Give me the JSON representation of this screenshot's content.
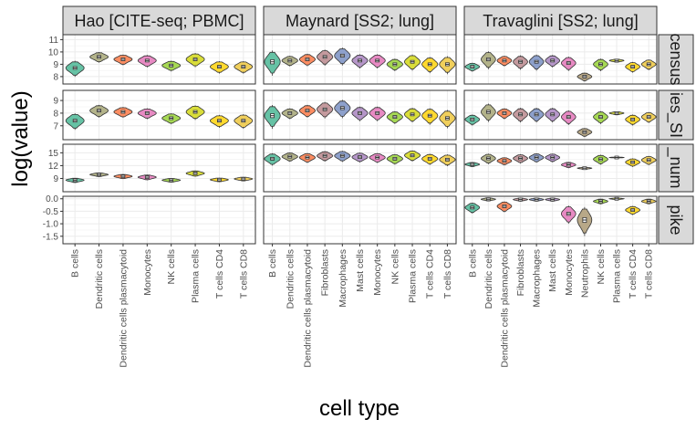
{
  "chart_data": {
    "type": "violin",
    "xlabel": "cell type",
    "ylabel": "log(value)",
    "grid": true,
    "legend": "none",
    "column_facets": [
      "Hao [CITE-seq; PBMC]",
      "Maynard [SS2; lung]",
      "Travaglini [SS2; lung]"
    ],
    "row_facets": [
      "census",
      "ies_SI",
      "number",
      "spike"
    ],
    "row_facets_visible": [
      "census",
      "ies_SI",
      "_num",
      "pike"
    ],
    "categories_by_column": [
      [
        "B cells",
        "Dendritic cells",
        "Dendritic cells plasmacytoid",
        "Monocytes",
        "NK cells",
        "Plasma cells",
        "T cells CD4",
        "T cells CD8"
      ],
      [
        "B cells",
        "Dendritic cells",
        "Dendritic cells plasmacytoid",
        "Fibroblasts",
        "Macrophages",
        "Mast cells",
        "Monocytes",
        "NK cells",
        "Plasma cells",
        "T cells CD4",
        "T cells CD8"
      ],
      [
        "B cells",
        "Dendritic cells",
        "Dendritic cells plasmacytoid",
        "Fibroblasts",
        "Macrophages",
        "Mast cells",
        "Monocytes",
        "Neutrophils",
        "NK cells",
        "Plasma cells",
        "T cells CD4",
        "T cells CD8"
      ]
    ],
    "colors": {
      "B cells": "#66c2a5",
      "Dendritic cells": "#b3b38a",
      "Dendritic cells plasmacytoid": "#fc8d62",
      "Fibroblasts": "#c49a9e",
      "Macrophages": "#8da0cb",
      "Mast cells": "#b596c8",
      "Monocytes": "#e78ac3",
      "Neutrophils": "#b8a888",
      "NK cells": "#a6d854",
      "Plasma cells": "#d9dd3a",
      "T cells CD4": "#ffd92f",
      "T cells CD8": "#f0cf5c"
    },
    "panels": [
      {
        "row": "census",
        "ylim": [
          7.4,
          11.4
        ],
        "yticks": [
          8,
          9,
          10,
          11
        ],
        "columns": [
          [
            [
              8.7,
              0.9
            ],
            [
              9.6,
              0.6
            ],
            [
              9.4,
              0.6
            ],
            [
              9.3,
              0.7
            ],
            [
              8.9,
              0.6
            ],
            [
              9.4,
              0.8
            ],
            [
              8.8,
              0.7
            ],
            [
              8.8,
              0.7
            ]
          ],
          [
            [
              9.2,
              1.4
            ],
            [
              9.3,
              0.6
            ],
            [
              9.4,
              0.7
            ],
            [
              9.6,
              0.9
            ],
            [
              9.7,
              1.0
            ],
            [
              9.3,
              0.8
            ],
            [
              9.3,
              0.8
            ],
            [
              9.0,
              0.7
            ],
            [
              9.2,
              0.9
            ],
            [
              9.0,
              0.9
            ],
            [
              9.0,
              1.0
            ]
          ],
          [
            [
              8.8,
              0.5
            ],
            [
              9.4,
              1.0
            ],
            [
              9.3,
              0.6
            ],
            [
              9.2,
              0.8
            ],
            [
              9.2,
              0.9
            ],
            [
              9.3,
              0.7
            ],
            [
              9.1,
              0.8
            ],
            [
              8.0,
              0.5
            ],
            [
              9.0,
              0.7
            ],
            [
              9.3,
              0.2
            ],
            [
              8.8,
              0.6
            ],
            [
              9.0,
              0.6
            ]
          ]
        ]
      },
      {
        "row": "ies_SI",
        "ylim": [
          5.9,
          9.8
        ],
        "yticks": [
          7,
          8,
          9
        ],
        "columns": [
          [
            [
              7.4,
              0.9
            ],
            [
              8.2,
              0.7
            ],
            [
              8.1,
              0.6
            ],
            [
              8.0,
              0.6
            ],
            [
              7.6,
              0.6
            ],
            [
              8.1,
              0.8
            ],
            [
              7.4,
              0.7
            ],
            [
              7.4,
              0.8
            ]
          ],
          [
            [
              7.8,
              1.3
            ],
            [
              8.0,
              0.6
            ],
            [
              8.2,
              0.7
            ],
            [
              8.3,
              0.9
            ],
            [
              8.4,
              1.0
            ],
            [
              8.0,
              0.8
            ],
            [
              8.0,
              0.8
            ],
            [
              7.7,
              0.7
            ],
            [
              7.9,
              0.8
            ],
            [
              7.8,
              0.9
            ],
            [
              7.6,
              1.0
            ]
          ],
          [
            [
              7.5,
              0.6
            ],
            [
              8.1,
              1.0
            ],
            [
              8.0,
              0.6
            ],
            [
              7.9,
              0.8
            ],
            [
              7.9,
              0.8
            ],
            [
              7.9,
              0.8
            ],
            [
              7.7,
              0.8
            ],
            [
              6.5,
              0.5
            ],
            [
              7.7,
              0.7
            ],
            [
              8.0,
              0.2
            ],
            [
              7.5,
              0.6
            ],
            [
              7.7,
              0.6
            ]
          ]
        ]
      },
      {
        "row": "number",
        "ylim": [
          5.9,
          17.0
        ],
        "yticks": [
          9,
          12,
          15
        ],
        "columns": [
          [
            [
              8.6,
              0.8
            ],
            [
              9.9,
              0.7
            ],
            [
              9.5,
              0.8
            ],
            [
              9.3,
              0.9
            ],
            [
              8.6,
              0.7
            ],
            [
              10.2,
              1.0
            ],
            [
              8.7,
              0.7
            ],
            [
              8.9,
              0.7
            ]
          ],
          [
            [
              13.6,
              2.0
            ],
            [
              14.1,
              1.5
            ],
            [
              13.9,
              1.6
            ],
            [
              14.3,
              1.7
            ],
            [
              14.3,
              1.8
            ],
            [
              14.0,
              1.6
            ],
            [
              13.9,
              1.6
            ],
            [
              13.6,
              1.7
            ],
            [
              14.4,
              1.8
            ],
            [
              13.6,
              1.8
            ],
            [
              13.4,
              1.9
            ]
          ],
          [
            [
              12.3,
              0.8
            ],
            [
              13.7,
              1.7
            ],
            [
              13.1,
              1.3
            ],
            [
              13.7,
              1.5
            ],
            [
              13.9,
              1.5
            ],
            [
              13.9,
              1.4
            ],
            [
              12.2,
              1.0
            ],
            [
              11.4,
              0.4
            ],
            [
              13.5,
              1.6
            ],
            [
              13.9,
              0.2
            ],
            [
              12.8,
              1.4
            ],
            [
              13.3,
              1.5
            ]
          ]
        ]
      },
      {
        "row": "spike",
        "ylim": [
          -1.8,
          0.1
        ],
        "yticks": [
          0.0,
          -0.5,
          -1.0,
          -1.5
        ],
        "columns": [
          null,
          null,
          [
            [
              -0.35,
              0.3
            ],
            [
              -0.02,
              0.1
            ],
            [
              -0.3,
              0.3
            ],
            [
              -0.03,
              0.1
            ],
            [
              -0.03,
              0.1
            ],
            [
              -0.03,
              0.1
            ],
            [
              -0.6,
              0.5
            ],
            [
              -0.85,
              0.8
            ],
            [
              -0.1,
              0.15
            ],
            [
              0.0,
              0.05
            ],
            [
              -0.45,
              0.25
            ],
            [
              -0.1,
              0.15
            ]
          ]
        ]
      }
    ]
  }
}
